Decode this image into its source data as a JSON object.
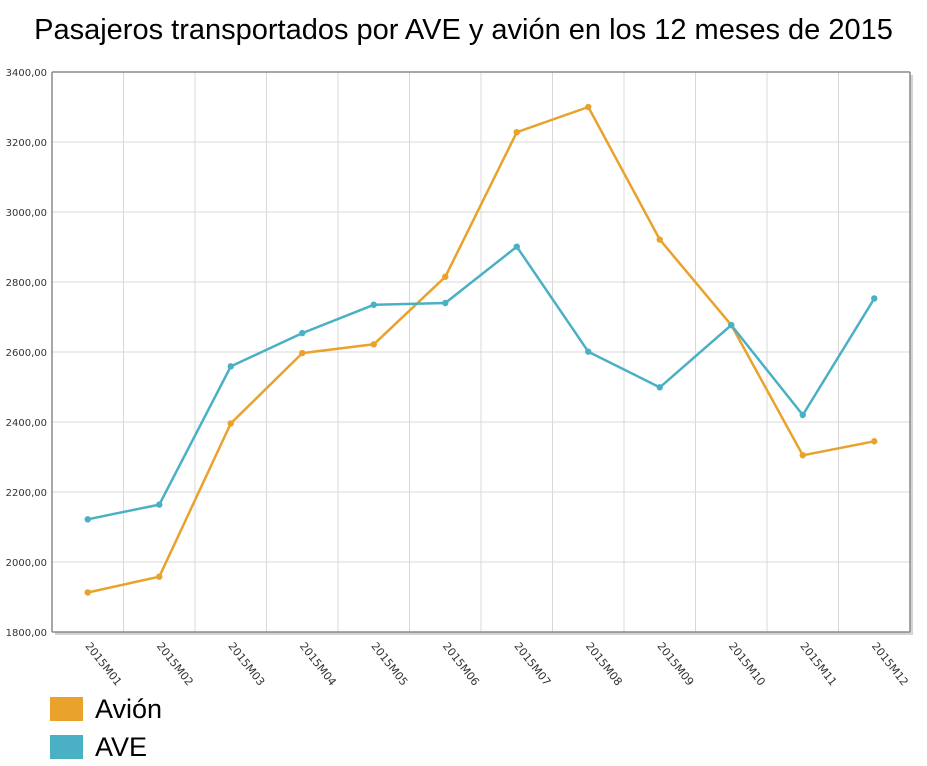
{
  "chart_data": {
    "type": "line",
    "title": "Pasajeros transportados por AVE y avión en los 12 meses de 2015",
    "xlabel": "",
    "ylabel": "",
    "categories": [
      "2015M01",
      "2015M02",
      "2015M03",
      "2015M04",
      "2015M05",
      "2015M06",
      "2015M07",
      "2015M08",
      "2015M09",
      "2015M10",
      "2015M11",
      "2015M12"
    ],
    "ylim": [
      1800,
      3400
    ],
    "y_ticks": [
      "1800,00",
      "2000,00",
      "2200,00",
      "2400,00",
      "2600,00",
      "2800,00",
      "3000,00",
      "3200,00",
      "3400,00"
    ],
    "grid": true,
    "legend_position": "bottom-left",
    "series": [
      {
        "name": "Avión",
        "color": "#e9a22b",
        "values": [
          1913,
          1958,
          2396,
          2597,
          2622,
          2815,
          3228,
          3300,
          2921,
          2677,
          2305,
          2345
        ]
      },
      {
        "name": "AVE",
        "color": "#4ab0c4",
        "values": [
          2122,
          2164,
          2559,
          2654,
          2735,
          2740,
          2901,
          2601,
          2499,
          2677,
          2420,
          2753
        ]
      }
    ]
  }
}
